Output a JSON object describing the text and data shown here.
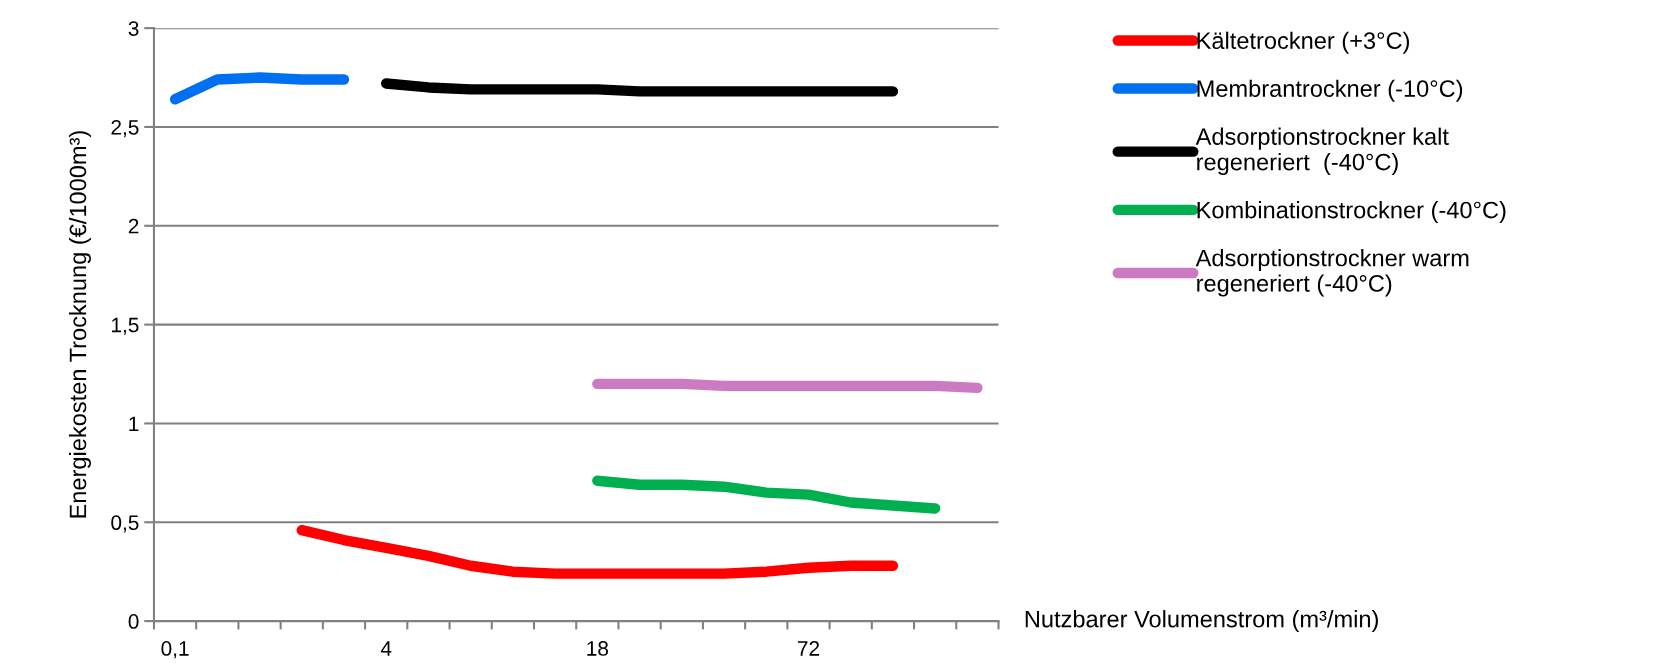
{
  "chart_data": {
    "type": "line",
    "ylabel": "Energiekosten Trocknung (€/1000m³)",
    "xlabel": "Nutzbarer Volumenstrom (m³/min)",
    "categories": [
      "0,1",
      null,
      null,
      null,
      null,
      "4",
      null,
      null,
      null,
      null,
      "18",
      null,
      null,
      null,
      null,
      "72",
      null,
      null,
      null,
      null
    ],
    "series": [
      {
        "name": "Kältetrockner (+3°C)",
        "color": "#ff0000",
        "values": [
          null,
          null,
          null,
          0.46,
          0.41,
          0.37,
          0.33,
          0.28,
          0.25,
          0.24,
          0.24,
          0.24,
          0.24,
          0.24,
          0.25,
          0.27,
          0.28,
          0.28,
          null,
          null
        ]
      },
      {
        "name": "Membrantrockner (-10°C)",
        "color": "#0070f0",
        "values": [
          2.64,
          2.74,
          2.75,
          2.74,
          2.74,
          null,
          null,
          null,
          null,
          null,
          null,
          null,
          null,
          null,
          null,
          null,
          null,
          null,
          null,
          null
        ]
      },
      {
        "name": "Adsorptionstrockner kalt\nregeneriert  (-40°C)",
        "color": "#000000",
        "values": [
          null,
          null,
          null,
          null,
          null,
          2.72,
          2.7,
          2.69,
          2.69,
          2.69,
          2.69,
          2.68,
          2.68,
          2.68,
          2.68,
          2.68,
          2.68,
          2.68,
          null,
          null
        ]
      },
      {
        "name": "Kombinationstrockner (-40°C)",
        "color": "#00b050",
        "values": [
          null,
          null,
          null,
          null,
          null,
          null,
          null,
          null,
          null,
          null,
          0.71,
          0.69,
          0.69,
          0.68,
          0.65,
          0.64,
          0.6,
          0.585,
          0.57,
          null
        ]
      },
      {
        "name": "Adsorptionstrockner warm\nregeneriert (-40°C)",
        "color": "#cc7ac2",
        "values": [
          null,
          null,
          null,
          null,
          null,
          null,
          null,
          null,
          null,
          null,
          1.2,
          1.2,
          1.2,
          1.19,
          1.19,
          1.19,
          1.19,
          1.19,
          1.19,
          1.18
        ]
      }
    ],
    "ylim": [
      0,
      3
    ],
    "yticks": [
      0,
      {
        "value": 0.5,
        "label": "0,5"
      },
      1,
      {
        "value": 1.5,
        "label": "1,5"
      },
      2,
      {
        "value": 2.5,
        "label": "2,5"
      },
      3
    ],
    "grid": "y",
    "legend": "right",
    "marker": "none",
    "line_style": "solid"
  }
}
